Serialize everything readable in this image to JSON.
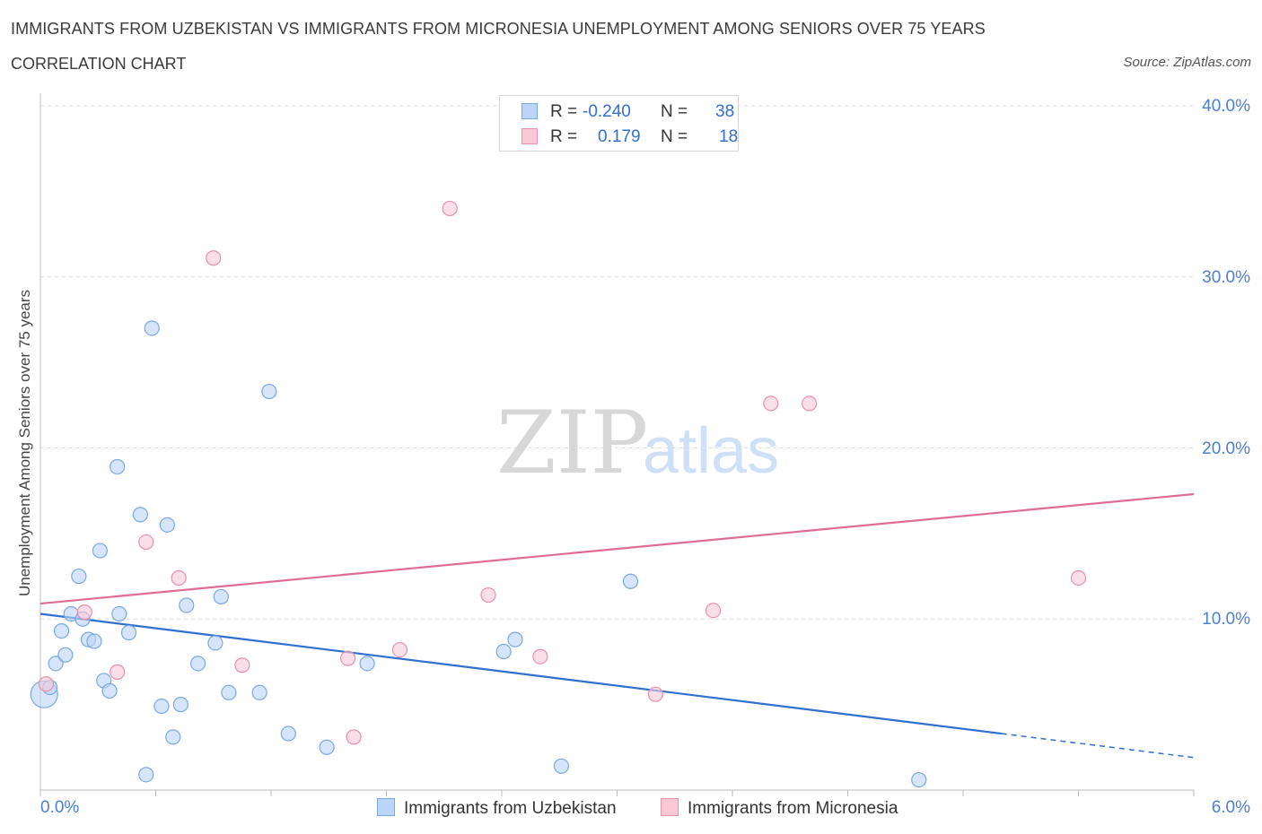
{
  "header": {
    "title": "IMMIGRANTS FROM UZBEKISTAN VS IMMIGRANTS FROM MICRONESIA UNEMPLOYMENT AMONG SENIORS OVER 75 YEARS",
    "subtitle": "CORRELATION CHART",
    "source": "Source: ZipAtlas.com"
  },
  "legend": {
    "rows": [
      {
        "r_label": "R =",
        "r_value": "-0.240",
        "n_label": "N =",
        "n_value": "38"
      },
      {
        "r_label": "R =",
        "r_value": "0.179",
        "n_label": "N =",
        "n_value": "18"
      }
    ]
  },
  "watermark": {
    "part1": "ZIP",
    "part2": "atlas"
  },
  "colors": {
    "uzbekistan_fill": "#bcd4f7",
    "uzbekistan_stroke": "#7aa7e6",
    "uzbekistan_line": "#2f6fd1",
    "micronesia_fill": "#f9c9d8",
    "micronesia_stroke": "#ea8fac",
    "micronesia_line": "#e06b93",
    "tick_text": "#4a7fd4",
    "grid": "#dddddd"
  },
  "chart_data": {
    "type": "scatter",
    "title": "IMMIGRANTS FROM UZBEKISTAN VS IMMIGRANTS FROM MICRONESIA UNEMPLOYMENT AMONG SENIORS OVER 75 YEARS",
    "subtitle": "CORRELATION CHART",
    "xlabel": "",
    "ylabel": "Unemployment Among Seniors over 75 years",
    "xlim": [
      0,
      6
    ],
    "ylim": [
      0,
      40
    ],
    "x_tick_labels": [
      "0.0%",
      "6.0%"
    ],
    "y_tick_values": [
      10,
      20,
      30,
      40
    ],
    "y_tick_labels": [
      "10.0%",
      "20.0%",
      "30.0%",
      "40.0%"
    ],
    "grid": true,
    "legend_position": "top-center",
    "series": [
      {
        "name": "Immigrants from Uzbekistan",
        "points": [
          {
            "x": 0.02,
            "y": 5.6,
            "big": true
          },
          {
            "x": 0.05,
            "y": 6.0
          },
          {
            "x": 0.08,
            "y": 7.4
          },
          {
            "x": 0.11,
            "y": 9.3
          },
          {
            "x": 0.13,
            "y": 7.9
          },
          {
            "x": 0.16,
            "y": 10.3
          },
          {
            "x": 0.2,
            "y": 12.5
          },
          {
            "x": 0.22,
            "y": 10.0
          },
          {
            "x": 0.25,
            "y": 8.8
          },
          {
            "x": 0.28,
            "y": 8.7
          },
          {
            "x": 0.31,
            "y": 14.0
          },
          {
            "x": 0.33,
            "y": 6.4
          },
          {
            "x": 0.36,
            "y": 5.8
          },
          {
            "x": 0.4,
            "y": 18.9
          },
          {
            "x": 0.41,
            "y": 10.3
          },
          {
            "x": 0.46,
            "y": 9.2
          },
          {
            "x": 0.52,
            "y": 16.1
          },
          {
            "x": 0.55,
            "y": 0.9
          },
          {
            "x": 0.58,
            "y": 27.0
          },
          {
            "x": 0.63,
            "y": 4.9
          },
          {
            "x": 0.66,
            "y": 15.5
          },
          {
            "x": 0.69,
            "y": 3.1
          },
          {
            "x": 0.73,
            "y": 5.0
          },
          {
            "x": 0.76,
            "y": 10.8
          },
          {
            "x": 0.82,
            "y": 7.4
          },
          {
            "x": 0.91,
            "y": 8.6
          },
          {
            "x": 0.94,
            "y": 11.3
          },
          {
            "x": 0.98,
            "y": 5.7
          },
          {
            "x": 1.14,
            "y": 5.7
          },
          {
            "x": 1.19,
            "y": 23.3
          },
          {
            "x": 1.29,
            "y": 3.3
          },
          {
            "x": 1.49,
            "y": 2.5
          },
          {
            "x": 1.7,
            "y": 7.4
          },
          {
            "x": 2.41,
            "y": 8.1
          },
          {
            "x": 2.47,
            "y": 8.8
          },
          {
            "x": 2.71,
            "y": 1.4
          },
          {
            "x": 3.07,
            "y": 12.2
          },
          {
            "x": 4.57,
            "y": 0.6
          }
        ],
        "trend": {
          "x0": 0.0,
          "y0": 10.3,
          "x1": 6.0,
          "y1": 1.9,
          "solid_until_x": 5.0
        }
      },
      {
        "name": "Immigrants from Micronesia",
        "points": [
          {
            "x": 0.03,
            "y": 6.2
          },
          {
            "x": 0.23,
            "y": 10.4
          },
          {
            "x": 0.4,
            "y": 6.9
          },
          {
            "x": 0.55,
            "y": 14.5
          },
          {
            "x": 0.72,
            "y": 12.4
          },
          {
            "x": 0.9,
            "y": 31.1
          },
          {
            "x": 1.05,
            "y": 7.3
          },
          {
            "x": 1.6,
            "y": 7.7
          },
          {
            "x": 1.63,
            "y": 3.1
          },
          {
            "x": 1.87,
            "y": 8.2
          },
          {
            "x": 2.13,
            "y": 34.0
          },
          {
            "x": 2.33,
            "y": 11.4
          },
          {
            "x": 2.6,
            "y": 7.8
          },
          {
            "x": 3.2,
            "y": 5.6
          },
          {
            "x": 3.5,
            "y": 10.5
          },
          {
            "x": 3.8,
            "y": 22.6
          },
          {
            "x": 4.0,
            "y": 22.6
          },
          {
            "x": 5.4,
            "y": 12.4
          }
        ],
        "trend": {
          "x0": 0.0,
          "y0": 10.9,
          "x1": 6.0,
          "y1": 17.3
        }
      }
    ]
  }
}
